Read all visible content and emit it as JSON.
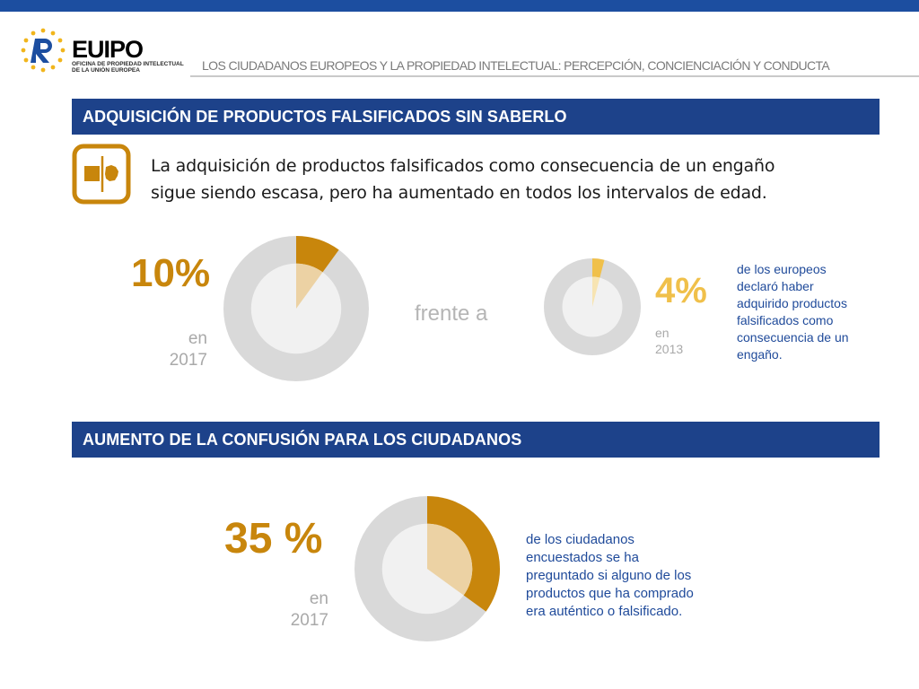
{
  "header": {
    "logo_name": "EUIPO",
    "logo_sub_line1": "OFICINA DE PROPIEDAD INTELECTUAL",
    "logo_sub_line2": "DE LA UNIÓN EUROPEA",
    "title": "LOS CIUDADANOS EUROPEOS Y LA PROPIEDAD INTELECTUAL: PERCEPCIÓN, CONCIENCIACIÓN Y CONDUCTA"
  },
  "colors": {
    "brand_blue": "#1c4ea0",
    "section_bar": "#1d428a",
    "accent_gold": "#c8860c",
    "accent_yellow": "#f0c04a",
    "ring_grey": "#d9d9d9",
    "inner_grey": "#f1f1f1"
  },
  "section1": {
    "heading": "ADQUISICIÓN DE PRODUCTOS FALSIFICADOS SIN SABERLO",
    "icon": "split-product-icon",
    "intro_line1": "La adquisición de productos falsificados como consecuencia de un engaño",
    "intro_line2": "sigue siendo escasa, pero ha aumentado en todos los intervalos de edad.",
    "stat_2017": {
      "value_label": "10%",
      "year_prefix": "en",
      "year": "2017",
      "fraction": 0.1
    },
    "versus": "frente a",
    "stat_2013": {
      "value_label": "4%",
      "year_prefix": "en",
      "year": "2013",
      "fraction": 0.04
    },
    "description_lines": [
      "de los europeos",
      "declaró haber",
      "adquirido productos",
      "falsificados como",
      "consecuencia de un",
      "engaño."
    ]
  },
  "section2": {
    "heading": "AUMENTO DE LA CONFUSIÓN PARA LOS CIUDADANOS",
    "stat_2017": {
      "value_label": "35 %",
      "year_prefix": "en",
      "year": "2017",
      "fraction": 0.35
    },
    "description_lines": [
      "de los ciudadanos",
      "encuestados se ha",
      "preguntado si alguno de los",
      "productos que ha comprado",
      "era auténtico o falsificado."
    ]
  }
}
